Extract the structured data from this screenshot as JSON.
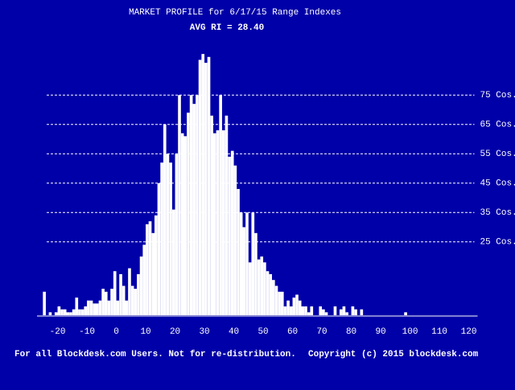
{
  "chart_data": {
    "type": "histogram",
    "title": "MARKET PROFILE for 6/17/15 Range Indexes",
    "subtitle": "AVG RI = 28.40",
    "annotations": [
      "For all Blockdesk.com Users. Not for re-distribution.",
      "Copyright (c) 2015 blockdesk.com"
    ],
    "color": "#ffffff",
    "background": "#0000a8",
    "grid": true,
    "bins": [
      -25,
      -24,
      -23,
      -22,
      -21,
      -20,
      -19,
      -18,
      -17,
      -16,
      -15,
      -14,
      -13,
      -12,
      -11,
      -10,
      -9,
      -8,
      -7,
      -6,
      -5,
      -4,
      -3,
      -2,
      -1,
      0,
      1,
      2,
      3,
      4,
      5,
      6,
      7,
      8,
      9,
      10,
      11,
      12,
      13,
      14,
      15,
      16,
      17,
      18,
      19,
      20,
      21,
      22,
      23,
      24,
      25,
      26,
      27,
      28,
      29,
      30,
      31,
      32,
      33,
      34,
      35,
      36,
      37,
      38,
      39,
      40,
      41,
      42,
      43,
      44,
      45,
      46,
      47,
      48,
      49,
      50,
      51,
      52,
      53,
      54,
      55,
      56,
      57,
      58,
      59,
      60,
      61,
      62,
      63,
      64,
      65,
      66,
      67,
      68,
      69,
      70,
      71,
      72,
      73,
      74,
      75,
      76,
      77,
      78,
      79,
      80,
      81,
      82,
      83,
      84,
      85,
      86,
      87,
      88,
      89,
      90,
      91,
      92,
      93,
      94,
      95,
      96,
      97,
      98,
      99,
      100
    ],
    "values": [
      8,
      0,
      1,
      0,
      1,
      3,
      2,
      2,
      1,
      1,
      2,
      6,
      2,
      2,
      3,
      5,
      5,
      4,
      4,
      5,
      9,
      8,
      5,
      9,
      15,
      5,
      14,
      10,
      5,
      16,
      10,
      9,
      14,
      20,
      24,
      31,
      32,
      28,
      34,
      45,
      52,
      65,
      55,
      52,
      36,
      55,
      75,
      62,
      61,
      69,
      75,
      72,
      75,
      87,
      89,
      86,
      88,
      68,
      62,
      63,
      75,
      63,
      68,
      54,
      56,
      51,
      43,
      35,
      30,
      35,
      18,
      35,
      28,
      19,
      20,
      18,
      15,
      14,
      12,
      10,
      8,
      8,
      3,
      5,
      3,
      6,
      7,
      5,
      3,
      3,
      1,
      3,
      0,
      0,
      3,
      2,
      1,
      0,
      0,
      3,
      0,
      2,
      3,
      1,
      0,
      3,
      2,
      0,
      2,
      0,
      0,
      0,
      0,
      0,
      0,
      0,
      0,
      0,
      0,
      0,
      0,
      0,
      0,
      1,
      0
    ],
    "xlim": [
      -27,
      123
    ],
    "xticks": [
      -20,
      -10,
      0,
      10,
      20,
      30,
      40,
      50,
      60,
      70,
      80,
      90,
      100,
      110,
      120
    ],
    "ylim": [
      0,
      91
    ],
    "yticks": [
      {
        "value": 25,
        "label": "25 Cos."
      },
      {
        "value": 35,
        "label": "35 Cos."
      },
      {
        "value": 45,
        "label": "45 Cos."
      },
      {
        "value": 55,
        "label": "55 Cos."
      },
      {
        "value": 65,
        "label": "65 Cos."
      },
      {
        "value": 75,
        "label": "75 Cos."
      }
    ]
  }
}
